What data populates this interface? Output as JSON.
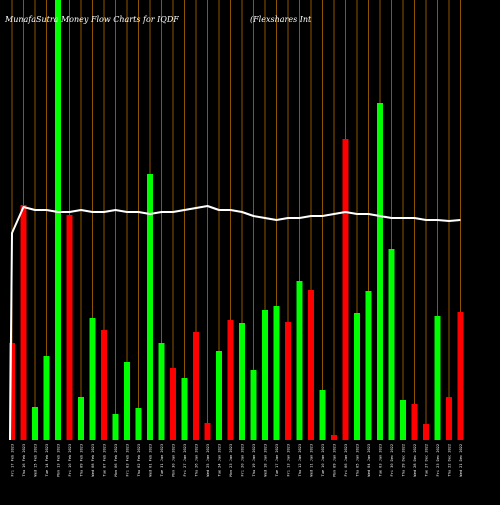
{
  "chart_data": {
    "type": "bar",
    "title_left": "MunafaSutra  Money Flow  Charts for IQDF",
    "title_right": "(Flexshares Int",
    "ylim": [
      0,
      440
    ],
    "categories": [
      "Fri 17 Feb 2023",
      "Thu 16 Feb 2023",
      "Wed 15 Feb 2023",
      "Tue 14 Feb 2023",
      "Mon 13 Feb 2023",
      "Fri 10 Feb 2023",
      "Thu 09 Feb 2023",
      "Wed 08 Feb 2023",
      "Tue 07 Feb 2023",
      "Mon 06 Feb 2023",
      "Fri 03 Feb 2023",
      "Thu 02 Feb 2023",
      "Wed 01 Feb 2023",
      "Tue 31 Jan 2023",
      "Mon 30 Jan 2023",
      "Fri 27 Jan 2023",
      "Thu 26 Jan 2023",
      "Wed 25 Jan 2023",
      "Tue 24 Jan 2023",
      "Mon 23 Jan 2023",
      "Fri 20 Jan 2023",
      "Thu 19 Jan 2023",
      "Wed 18 Jan 2023",
      "Tue 17 Jan 2023",
      "Fri 13 Jan 2023",
      "Thu 12 Jan 2023",
      "Wed 11 Jan 2023",
      "Tue 10 Jan 2023",
      "Mon 09 Jan 2023",
      "Fri 06 Jan 2023",
      "Thu 05 Jan 2023",
      "Wed 04 Jan 2023",
      "Tue 03 Jan 2023",
      "Fri 30 Dec 2022",
      "Thu 29 Dec 2022",
      "Wed 28 Dec 2022",
      "Tue 27 Dec 2022",
      "Fri 23 Dec 2022",
      "Thu 22 Dec 2022",
      "Wed 21 Dec 2022"
    ],
    "values": [
      97,
      235,
      33,
      84,
      440,
      225,
      43,
      122,
      110,
      26,
      78,
      32,
      266,
      97,
      72,
      62,
      108,
      17,
      89,
      120,
      117,
      70,
      130,
      134,
      118,
      159,
      150,
      50,
      5,
      301,
      127,
      149,
      337,
      191,
      40,
      36,
      16,
      124,
      43,
      128
    ],
    "colors": [
      "red",
      "red",
      "green",
      "green",
      "green",
      "red",
      "green",
      "green",
      "red",
      "green",
      "green",
      "green",
      "green",
      "green",
      "red",
      "green",
      "red",
      "red",
      "green",
      "red",
      "green",
      "green",
      "green",
      "green",
      "red",
      "green",
      "red",
      "green",
      "red",
      "red",
      "green",
      "green",
      "green",
      "green",
      "green",
      "red",
      "red",
      "green",
      "red",
      "red"
    ],
    "line_y": [
      233,
      207,
      210,
      210,
      212,
      212,
      210,
      212,
      212,
      210,
      212,
      212,
      214,
      212,
      212,
      210,
      208,
      206,
      210,
      210,
      212,
      216,
      218,
      220,
      218,
      218,
      216,
      216,
      214,
      212,
      214,
      214,
      216,
      218,
      218,
      218,
      220,
      220,
      221,
      220
    ],
    "color_map": {
      "red": "#ff0000",
      "green": "#00ff00"
    },
    "gridline_color": "#b36b00",
    "line_color": "#ffffff"
  }
}
